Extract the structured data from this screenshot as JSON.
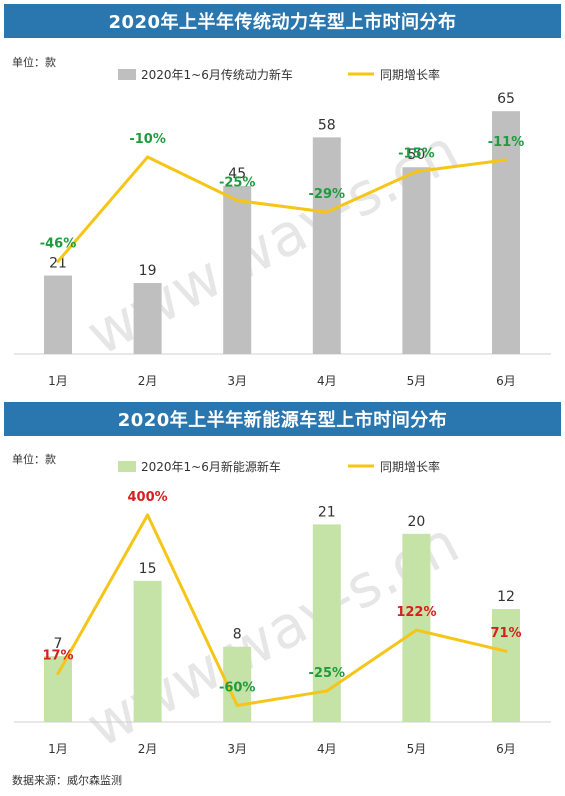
{
  "chart_data": [
    {
      "type": "bar+line",
      "title": "2020年上半年传统动力车型上市时间分布",
      "unit_label": "单位：款",
      "categories": [
        "1月",
        "2月",
        "3月",
        "4月",
        "5月",
        "6月"
      ],
      "series": [
        {
          "name": "2020年1~6月传统动力新车",
          "kind": "bar",
          "color": "#bfbfbf",
          "values": [
            21,
            19,
            45,
            58,
            50,
            65
          ],
          "labels": [
            "21",
            "19",
            "45",
            "58",
            "50",
            "65"
          ]
        },
        {
          "name": "同期增长率",
          "kind": "line",
          "color": "#f5c518",
          "values": [
            -46,
            -10,
            -25,
            -29,
            -15,
            -11
          ],
          "labels": [
            "-46%",
            "-10%",
            "-25%",
            "-29%",
            "-15%",
            "-11%"
          ],
          "label_colors": [
            "#1e9b3e",
            "#1e9b3e",
            "#1e9b3e",
            "#1e9b3e",
            "#1e9b3e",
            "#1e9b3e"
          ]
        }
      ],
      "bar_ylim": [
        0,
        68
      ],
      "line_ylim": [
        -80,
        20
      ]
    },
    {
      "type": "bar+line",
      "title": "2020年上半年新能源车型上市时间分布",
      "unit_label": "单位：款",
      "categories": [
        "1月",
        "2月",
        "3月",
        "4月",
        "5月",
        "6月"
      ],
      "series": [
        {
          "name": "2020年1~6月新能源新车",
          "kind": "bar",
          "color": "#c5e3a6",
          "values": [
            7,
            15,
            8,
            21,
            20,
            12
          ],
          "labels": [
            "7",
            "15",
            "8",
            "21",
            "20",
            "12"
          ]
        },
        {
          "name": "同期增长率",
          "kind": "line",
          "color": "#f5c518",
          "values": [
            17,
            400,
            -60,
            -25,
            122,
            71
          ],
          "labels": [
            "17%",
            "400%",
            "-60%",
            "-25%",
            "122%",
            "71%"
          ],
          "label_colors": [
            "#d62020",
            "#d62020",
            "#1e9b3e",
            "#1e9b3e",
            "#d62020",
            "#d62020"
          ]
        }
      ],
      "bar_ylim": [
        0,
        22
      ],
      "line_ylim": [
        -100,
        400
      ]
    }
  ],
  "watermark": "www.way-s.cn",
  "source": "数据来源：威尔森监测"
}
